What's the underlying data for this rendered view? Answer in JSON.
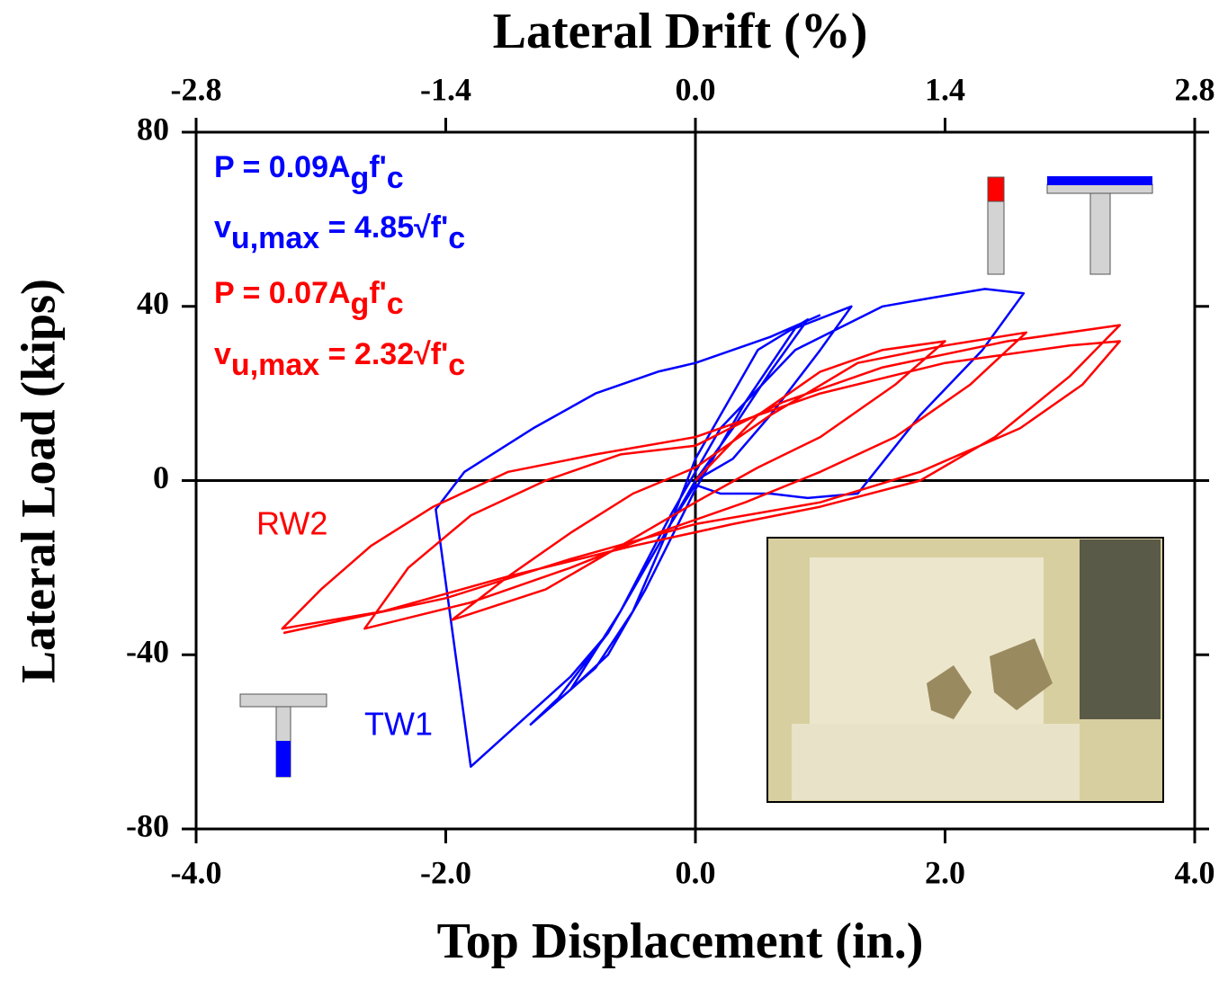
{
  "chart_data": {
    "type": "line",
    "title": "Lateral Drift (%)",
    "x_label": "Top Displacement (in.)",
    "y_label": "Lateral Load (kips)",
    "xlim": [
      -4,
      4
    ],
    "xticks": [
      {
        "value": -4,
        "label": "-4.0"
      },
      {
        "value": -2,
        "label": "-2.0"
      },
      {
        "value": 0,
        "label": "0.0"
      },
      {
        "value": 2,
        "label": "2.0"
      },
      {
        "value": 4,
        "label": "4.0"
      }
    ],
    "x2lim": [
      -2.8,
      2.8
    ],
    "x2ticks": [
      -2.8,
      -1.4,
      {
        "value": 0,
        "label": "0.0"
      },
      1.4,
      2.8
    ],
    "ylim": [
      -80,
      80
    ],
    "yticks": [
      80,
      40,
      0,
      -40,
      -80
    ],
    "series": [
      {
        "name": "TW1",
        "color": "#0000ff",
        "x": [
          0,
          0.3,
          0.6,
          0.8,
          0.9,
          0.5,
          0.2,
          0,
          -0.2,
          -0.5,
          -0.8,
          -1.0,
          -0.7,
          -0.4,
          0,
          0.4,
          0.8,
          1.25,
          1.0,
          0.6,
          0.3,
          0,
          -0.3,
          -0.7,
          -1.1,
          -1.32,
          -1.0,
          -0.6,
          -0.2,
          0.2,
          0.8,
          1.5,
          1.9,
          2.32,
          2.63,
          2.3,
          1.8,
          1.3,
          0.9,
          0.6,
          0.2,
          0,
          -0.2,
          -0.4,
          -0.7,
          -1.0,
          -1.8,
          -2.08,
          -1.85,
          -1.3,
          -0.8,
          -0.3,
          0,
          0.6,
          1.0
        ],
        "values": [
          0,
          12,
          25,
          33,
          37,
          30,
          15,
          5,
          -10,
          -30,
          -43,
          -48,
          -40,
          -25,
          -2,
          18,
          35,
          40,
          30,
          15,
          5,
          0,
          -15,
          -35,
          -50,
          -56,
          -48,
          -30,
          -8,
          12,
          30,
          40,
          42,
          44,
          43,
          30,
          15,
          -3,
          -4,
          -3,
          -3,
          -1,
          -10,
          -20,
          -35,
          -45,
          -65.7,
          -6.6,
          2,
          12,
          20,
          25,
          27,
          33,
          38
        ]
      },
      {
        "name": "RW2",
        "color": "#ff0000",
        "x": [
          0,
          0.5,
          1.0,
          1.5,
          2.0,
          1.6,
          1.0,
          0.5,
          0,
          -0.6,
          -1.2,
          -1.95,
          -1.5,
          -1.0,
          -0.5,
          0,
          0.6,
          1.3,
          2.0,
          2.65,
          2.2,
          1.6,
          1.0,
          0.4,
          -0.3,
          -1.0,
          -1.8,
          -2.65,
          -2.3,
          -1.8,
          -1.2,
          -0.6,
          0,
          0.7,
          1.5,
          2.5,
          3.4,
          3.0,
          2.4,
          1.8,
          1.0,
          0.3,
          -0.5,
          -1.5,
          -2.5,
          -3.31,
          -3.0,
          -2.6,
          -2.1,
          -1.5,
          -0.8,
          0,
          1.0,
          2.0,
          3.0,
          3.4,
          3.1,
          2.6,
          1.8,
          1.0,
          0,
          -1.0,
          -2.0,
          -3.3
        ],
        "values": [
          0,
          15,
          25,
          30,
          32,
          22,
          10,
          3,
          -5,
          -15,
          -25,
          -32,
          -22,
          -12,
          -3,
          3,
          15,
          27,
          31,
          34,
          22,
          10,
          2,
          -5,
          -12,
          -20,
          -28,
          -34,
          -20,
          -8,
          0,
          6,
          8,
          18,
          26,
          32,
          35.7,
          24,
          10,
          0,
          -6,
          -10,
          -15,
          -22,
          -30,
          -34,
          -25,
          -15,
          -6,
          2,
          6,
          10,
          20,
          27,
          31,
          32,
          22,
          12,
          2,
          -5,
          -10,
          -18,
          -27,
          -35
        ]
      }
    ],
    "annotations": [
      {
        "color": "#0000ff",
        "parts": [
          {
            "text": "P = 0.09A"
          },
          {
            "text": "g",
            "sub": true
          },
          {
            "text": "f'"
          },
          {
            "text": "c",
            "sub": true
          }
        ]
      },
      {
        "color": "#0000ff",
        "parts": [
          {
            "text": "v"
          },
          {
            "text": "u,max",
            "sub": true
          },
          {
            "text": " =  4.85√f'"
          },
          {
            "text": "c",
            "sub": true
          }
        ]
      },
      {
        "color": "#ff0000",
        "parts": [
          {
            "text": "P = 0.07A"
          },
          {
            "text": "g",
            "sub": true
          },
          {
            "text": "f'"
          },
          {
            "text": "c",
            "sub": true
          }
        ]
      },
      {
        "color": "#ff0000",
        "parts": [
          {
            "text": "v"
          },
          {
            "text": "u,max",
            "sub": true
          },
          {
            "text": " =  2.32√f'"
          },
          {
            "text": "c",
            "sub": true
          }
        ]
      }
    ]
  }
}
